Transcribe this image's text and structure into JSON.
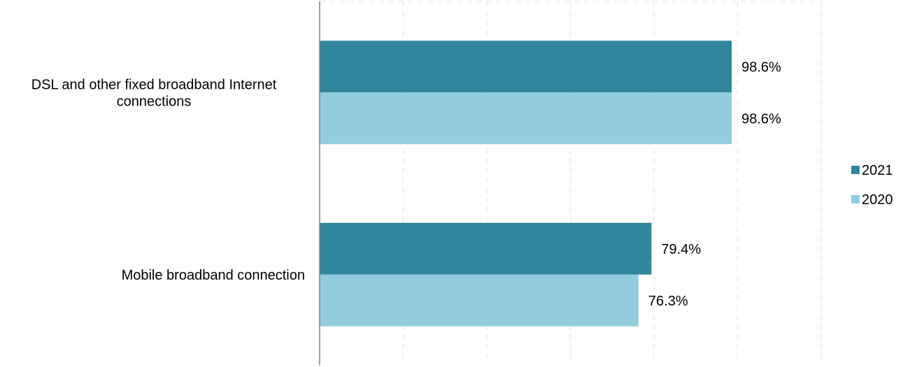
{
  "chart_data": {
    "type": "bar",
    "orientation": "horizontal",
    "categories": [
      [
        "DSL and other fixed broadband Internet",
        "connections"
      ],
      [
        "Mobile broadband connection"
      ]
    ],
    "series": [
      {
        "name": "2021",
        "values": [
          98.6,
          79.4
        ],
        "labels": [
          "98.6%",
          "79.4%"
        ],
        "color": "#31869b"
      },
      {
        "name": "2020",
        "values": [
          98.6,
          76.3
        ],
        "labels": [
          "98.6%",
          "76.3%"
        ],
        "color": "#93cddd"
      }
    ],
    "xlim": [
      0,
      120
    ],
    "grid": "vertical-dashed",
    "legend_position": "right",
    "title": "",
    "xlabel": "",
    "ylabel": ""
  }
}
